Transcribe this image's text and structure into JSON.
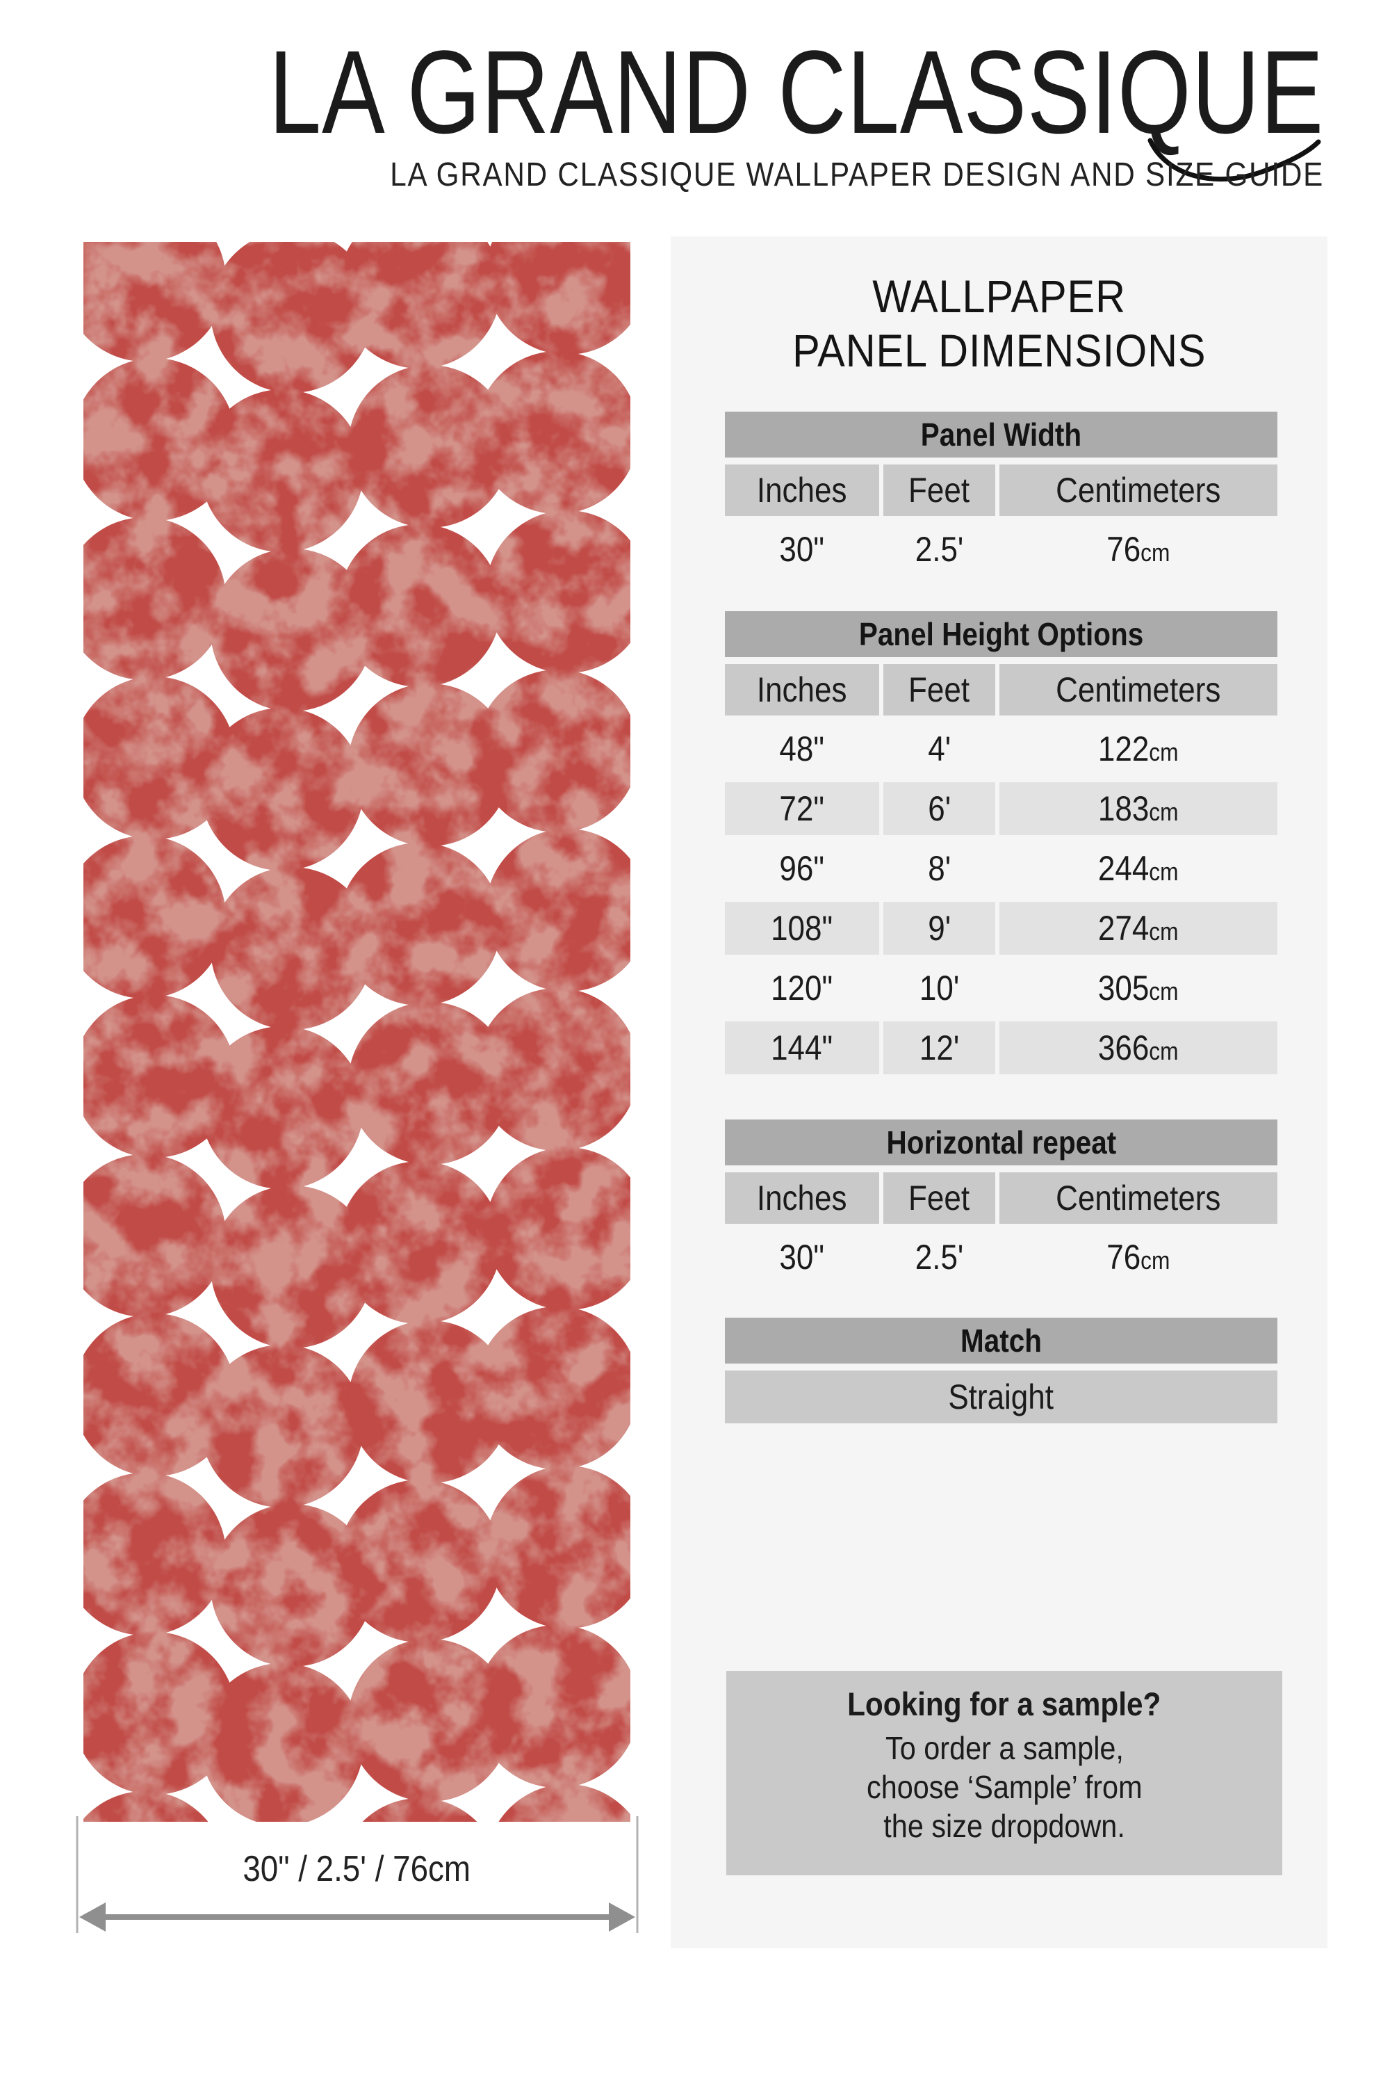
{
  "brand": {
    "title": "LA GRAND CLASSIQUE",
    "subtitle": "LA GRAND CLASSIQUE WALLPAPER DESIGN AND SIZE GUIDE"
  },
  "panel": {
    "heading_line1": "WALLPAPER",
    "heading_line2": "PANEL DIMENSIONS",
    "col_headers": {
      "inches": "Inches",
      "feet": "Feet",
      "centimeters": "Centimeters"
    },
    "unit_cm": "cm",
    "panel_width": {
      "title": "Panel Width",
      "inches": "30\"",
      "feet": "2.5'",
      "cm": "76"
    },
    "panel_height": {
      "title": "Panel Height Options",
      "rows": [
        {
          "in": "48\"",
          "ft": "4'",
          "cm": "122"
        },
        {
          "in": "72\"",
          "ft": "6'",
          "cm": "183"
        },
        {
          "in": "96\"",
          "ft": "8'",
          "cm": "244"
        },
        {
          "in": "108\"",
          "ft": "9'",
          "cm": "274"
        },
        {
          "in": "120\"",
          "ft": "10'",
          "cm": "305"
        },
        {
          "in": "144\"",
          "ft": "12'",
          "cm": "366"
        }
      ]
    },
    "horizontal_repeat": {
      "title": "Horizontal repeat",
      "inches": "30\"",
      "feet": "2.5'",
      "cm": "76"
    },
    "match": {
      "title": "Match",
      "value": "Straight"
    },
    "sample": {
      "title": "Looking for a sample?",
      "line1": "To order a sample,",
      "line2": "choose ‘Sample’ from",
      "line3": "the size dropdown."
    }
  },
  "dimension_label": "30\" / 2.5' / 76cm",
  "colors": {
    "pattern_red": "#c14b47",
    "pattern_texture": "#d3938b",
    "panel_bg": "#f5f5f5",
    "section_bar": "#ababab",
    "header_cell": "#c9c9c9",
    "row_stripe": "#e2e2e2",
    "sample_box": "#c9c9c9",
    "arrow": "#8f8f8f",
    "ink": "#1b1b1b"
  }
}
